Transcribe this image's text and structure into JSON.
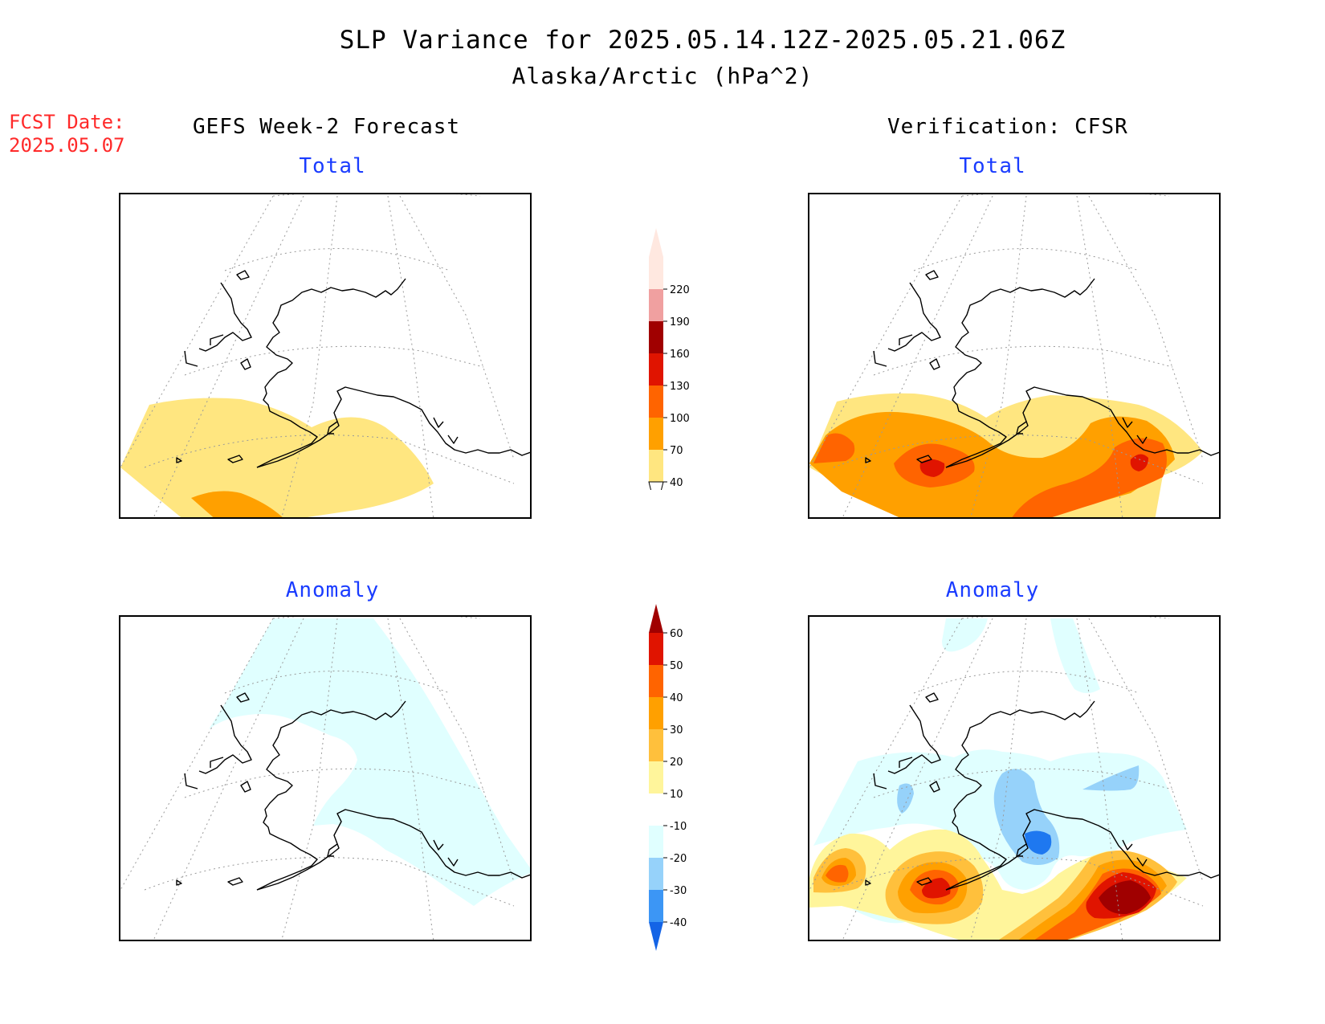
{
  "header": {
    "title": "SLP Variance for 2025.05.14.12Z-2025.05.21.06Z",
    "subtitle": "Alaska/Arctic (hPa^2)"
  },
  "forecast_date": {
    "label": "FCST Date:",
    "value": "2025.05.07"
  },
  "columns": {
    "left": "GEFS Week-2 Forecast",
    "right": "Verification: CFSR"
  },
  "panels": {
    "forecast_total": {
      "label": "Total"
    },
    "forecast_anomaly": {
      "label": "Anomaly"
    },
    "verification_total": {
      "label": "Total"
    },
    "verification_anomaly": {
      "label": "Anomaly"
    }
  },
  "colorbars": {
    "total": {
      "levels": [
        "40",
        "70",
        "100",
        "130",
        "160",
        "190",
        "220"
      ],
      "colors": [
        "#ffe680",
        "#ffa000",
        "#ff6400",
        "#e01400",
        "#a00000",
        "#f0a0a0",
        "#ffe8e0"
      ]
    },
    "anomaly": {
      "levels": [
        "-40",
        "-30",
        "-20",
        "-10",
        "10",
        "20",
        "30",
        "40",
        "50",
        "60"
      ],
      "colors": [
        "#1464e6",
        "#3c96f5",
        "#96d2fa",
        "#e0ffff",
        "#ffffff",
        "#fff59b",
        "#ffc03c",
        "#ffa000",
        "#ff6400",
        "#e01400",
        "#a00000"
      ]
    }
  }
}
